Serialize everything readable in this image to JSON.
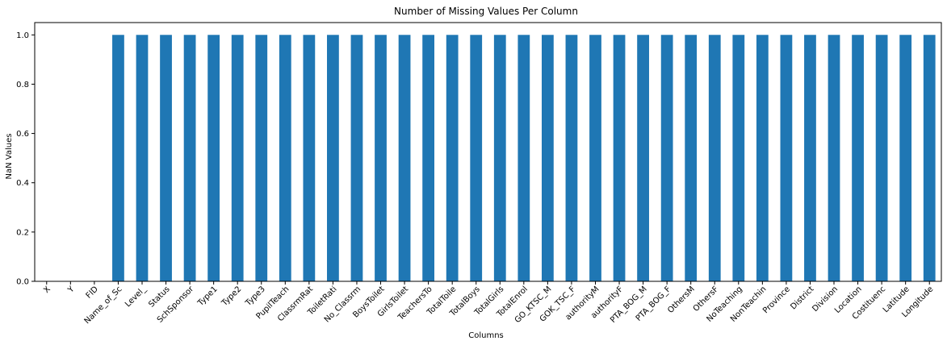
{
  "chart_data": {
    "type": "bar",
    "title": "Number of Missing Values Per Column",
    "xlabel": "Columns",
    "ylabel": "NaN Values",
    "ylim": [
      0,
      1.05
    ],
    "yticks": [
      0.0,
      0.2,
      0.4,
      0.6,
      0.8,
      1.0
    ],
    "ytick_labels": [
      "0.0",
      "0.2",
      "0.4",
      "0.6",
      "0.8",
      "1.0"
    ],
    "grid": false,
    "legend": "none",
    "bar_color": "#1f77b4",
    "categories": [
      "X",
      "Y",
      "FID",
      "Name_of_Sc",
      "Level_",
      "Status",
      "SchSponsor",
      "Type1",
      "Type2",
      "Type3",
      "PupilTeach",
      "ClassrmRat",
      "ToiletRati",
      "No_Classrm",
      "BoysToilet",
      "GirlsToilet",
      "TeachersTo",
      "TotalToile",
      "TotalBoys",
      "TotalGirls",
      "TotalEnrol",
      "GO_KTSC_M",
      "GOK_TSC_F",
      "authorityM",
      "authorityF",
      "PTA_BOG_M",
      "PTA_BOG_F",
      "OthersM",
      "OthersF",
      "NoTeaching",
      "NonTeachin",
      "Province",
      "District",
      "Division",
      "Location",
      "Costituenc",
      "Latitude",
      "Longitude"
    ],
    "values": [
      0,
      0,
      0,
      1,
      1,
      1,
      1,
      1,
      1,
      1,
      1,
      1,
      1,
      1,
      1,
      1,
      1,
      1,
      1,
      1,
      1,
      1,
      1,
      1,
      1,
      1,
      1,
      1,
      1,
      1,
      1,
      1,
      1,
      1,
      1,
      1,
      1,
      1
    ]
  }
}
